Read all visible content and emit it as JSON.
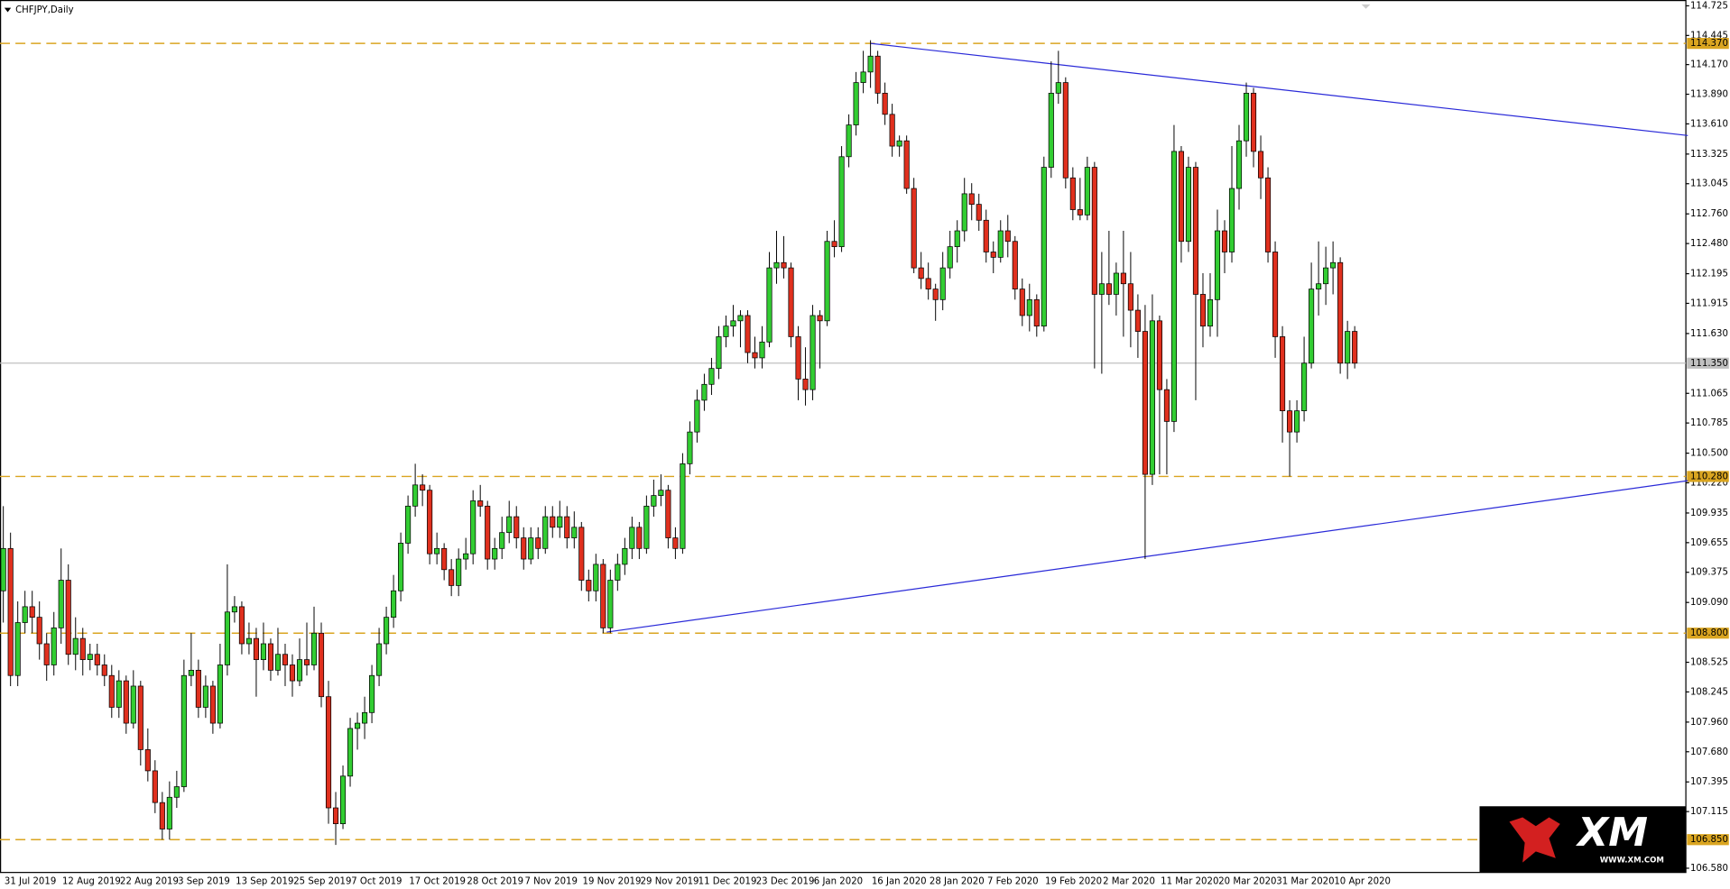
{
  "chart_data": {
    "type": "candlestick",
    "title": "CHFJPY,Daily",
    "categories": [
      "31 Jul 2019",
      null,
      null,
      null,
      null,
      null,
      null,
      null,
      "12 Aug 2019",
      null,
      null,
      null,
      null,
      null,
      null,
      null,
      "22 Aug 2019",
      null,
      null,
      null,
      null,
      null,
      null,
      null,
      "3 Sep 2019",
      null,
      null,
      null,
      null,
      null,
      null,
      null,
      "13 Sep 2019",
      null,
      null,
      null,
      null,
      null,
      null,
      null,
      "25 Sep 2019",
      null,
      null,
      null,
      null,
      null,
      null,
      null,
      "7 Oct 2019",
      null,
      null,
      null,
      null,
      null,
      null,
      null,
      "17 Oct 2019",
      null,
      null,
      null,
      null,
      null,
      null,
      null,
      "28 Oct 2019",
      null,
      null,
      null,
      null,
      null,
      null,
      null,
      "7 Nov 2019",
      null,
      null,
      null,
      null,
      null,
      null,
      null,
      "19 Nov 2019",
      null,
      null,
      null,
      null,
      null,
      null,
      null,
      "29 Nov 2019",
      null,
      null,
      null,
      null,
      null,
      null,
      null,
      "11 Dec 2019",
      null,
      null,
      null,
      null,
      null,
      null,
      null,
      "23 Dec 2019",
      null,
      null,
      null,
      null,
      null,
      null,
      null,
      "6 Jan 2020",
      null,
      null,
      null,
      null,
      null,
      null,
      null,
      "16 Jan 2020",
      null,
      null,
      null,
      null,
      null,
      null,
      null,
      "28 Jan 2020",
      null,
      null,
      null,
      null,
      null,
      null,
      null,
      "7 Feb 2020",
      null,
      null,
      null,
      null,
      null,
      null,
      null,
      "19 Feb 2020",
      null,
      null,
      null,
      null,
      null,
      null,
      null,
      "2 Mar 2020",
      null,
      null,
      null,
      null,
      null,
      null,
      null,
      "11 Mar 2020",
      null,
      null,
      null,
      null,
      null,
      null,
      null,
      "20 Mar 2020",
      null,
      null,
      null,
      null,
      null,
      null,
      null,
      "31 Mar 2020",
      null,
      null,
      null,
      null,
      null,
      null,
      null,
      "10 Apr 2020",
      null,
      null,
      null
    ],
    "ohlc": [
      [
        109.2,
        110.0,
        108.9,
        109.6
      ],
      [
        109.6,
        109.75,
        108.3,
        108.4
      ],
      [
        108.4,
        109.1,
        108.3,
        108.9
      ],
      [
        108.9,
        109.2,
        108.8,
        109.05
      ],
      [
        109.05,
        109.2,
        108.8,
        108.95
      ],
      [
        108.95,
        109.1,
        108.55,
        108.7
      ],
      [
        108.7,
        108.8,
        108.35,
        108.5
      ],
      [
        108.5,
        109.0,
        108.4,
        108.85
      ],
      [
        108.85,
        109.6,
        108.7,
        109.3
      ],
      [
        109.3,
        109.45,
        108.5,
        108.6
      ],
      [
        108.6,
        108.95,
        108.45,
        108.75
      ],
      [
        108.75,
        108.85,
        108.4,
        108.55
      ],
      [
        108.55,
        108.7,
        108.45,
        108.6
      ],
      [
        108.6,
        108.7,
        108.4,
        108.5
      ],
      [
        108.5,
        108.6,
        108.3,
        108.4
      ],
      [
        108.4,
        108.5,
        108.0,
        108.1
      ],
      [
        108.1,
        108.45,
        108.0,
        108.35
      ],
      [
        108.35,
        108.4,
        107.85,
        107.95
      ],
      [
        107.95,
        108.45,
        107.9,
        108.3
      ],
      [
        108.3,
        108.35,
        107.55,
        107.7
      ],
      [
        107.7,
        107.9,
        107.4,
        107.5
      ],
      [
        107.5,
        107.6,
        107.1,
        107.2
      ],
      [
        107.2,
        107.3,
        106.85,
        106.95
      ],
      [
        106.95,
        107.4,
        106.85,
        107.25
      ],
      [
        107.25,
        107.5,
        107.15,
        107.35
      ],
      [
        107.35,
        108.55,
        107.3,
        108.4
      ],
      [
        108.4,
        108.8,
        108.3,
        108.45
      ],
      [
        108.45,
        108.55,
        108.0,
        108.1
      ],
      [
        108.1,
        108.4,
        108.0,
        108.3
      ],
      [
        108.3,
        108.35,
        107.85,
        107.95
      ],
      [
        107.95,
        108.7,
        107.9,
        108.5
      ],
      [
        108.5,
        109.45,
        108.4,
        109.0
      ],
      [
        109.0,
        109.15,
        108.9,
        109.05
      ],
      [
        109.05,
        109.1,
        108.6,
        108.7
      ],
      [
        108.7,
        108.9,
        108.6,
        108.75
      ],
      [
        108.75,
        108.85,
        108.2,
        108.55
      ],
      [
        108.55,
        108.9,
        108.45,
        108.7
      ],
      [
        108.7,
        108.75,
        108.35,
        108.45
      ],
      [
        108.45,
        108.85,
        108.4,
        108.6
      ],
      [
        108.6,
        108.7,
        108.3,
        108.5
      ],
      [
        108.5,
        108.6,
        108.2,
        108.35
      ],
      [
        108.35,
        108.75,
        108.3,
        108.55
      ],
      [
        108.55,
        108.9,
        108.4,
        108.5
      ],
      [
        108.5,
        109.05,
        108.45,
        108.8
      ],
      [
        108.8,
        108.9,
        108.1,
        108.2
      ],
      [
        108.2,
        108.35,
        107.0,
        107.15
      ],
      [
        107.15,
        107.3,
        106.8,
        107.0
      ],
      [
        107.0,
        107.55,
        106.95,
        107.45
      ],
      [
        107.45,
        108.0,
        107.35,
        107.9
      ],
      [
        107.9,
        108.05,
        107.7,
        107.95
      ],
      [
        107.95,
        108.2,
        107.8,
        108.05
      ],
      [
        108.05,
        108.5,
        107.95,
        108.4
      ],
      [
        108.4,
        108.85,
        108.3,
        108.7
      ],
      [
        108.7,
        109.05,
        108.6,
        108.95
      ],
      [
        108.95,
        109.35,
        108.85,
        109.2
      ],
      [
        109.2,
        109.75,
        109.1,
        109.65
      ],
      [
        109.65,
        110.1,
        109.55,
        110.0
      ],
      [
        110.0,
        110.4,
        109.9,
        110.2
      ],
      [
        110.2,
        110.3,
        110.0,
        110.15
      ],
      [
        110.15,
        110.2,
        109.45,
        109.55
      ],
      [
        109.55,
        109.75,
        109.45,
        109.6
      ],
      [
        109.6,
        109.65,
        109.3,
        109.4
      ],
      [
        109.4,
        109.5,
        109.15,
        109.25
      ],
      [
        109.25,
        109.6,
        109.15,
        109.5
      ],
      [
        109.5,
        109.7,
        109.4,
        109.55
      ],
      [
        109.55,
        110.15,
        109.45,
        110.05
      ],
      [
        110.05,
        110.2,
        109.9,
        110.0
      ],
      [
        110.0,
        110.05,
        109.4,
        109.5
      ],
      [
        109.5,
        109.7,
        109.4,
        109.6
      ],
      [
        109.6,
        109.9,
        109.5,
        109.75
      ],
      [
        109.75,
        110.05,
        109.65,
        109.9
      ],
      [
        109.9,
        110.0,
        109.6,
        109.7
      ],
      [
        109.7,
        109.8,
        109.4,
        109.5
      ],
      [
        109.5,
        109.8,
        109.45,
        109.7
      ],
      [
        109.7,
        109.8,
        109.5,
        109.6
      ],
      [
        109.6,
        110.0,
        109.55,
        109.9
      ],
      [
        109.9,
        110.0,
        109.7,
        109.8
      ],
      [
        109.8,
        110.05,
        109.7,
        109.9
      ],
      [
        109.9,
        110.0,
        109.6,
        109.7
      ],
      [
        109.7,
        109.95,
        109.6,
        109.8
      ],
      [
        109.8,
        109.85,
        109.2,
        109.3
      ],
      [
        109.3,
        109.4,
        109.1,
        109.2
      ],
      [
        109.2,
        109.55,
        109.1,
        109.45
      ],
      [
        109.45,
        109.5,
        108.8,
        108.85
      ],
      [
        108.85,
        109.4,
        108.8,
        109.3
      ],
      [
        109.3,
        109.55,
        109.2,
        109.45
      ],
      [
        109.45,
        109.7,
        109.35,
        109.6
      ],
      [
        109.6,
        109.9,
        109.5,
        109.8
      ],
      [
        109.8,
        109.85,
        109.5,
        109.6
      ],
      [
        109.6,
        110.1,
        109.55,
        110.0
      ],
      [
        110.0,
        110.25,
        109.9,
        110.1
      ],
      [
        110.1,
        110.3,
        110.0,
        110.15
      ],
      [
        110.15,
        110.2,
        109.6,
        109.7
      ],
      [
        109.7,
        109.8,
        109.5,
        109.6
      ],
      [
        109.6,
        110.5,
        109.55,
        110.4
      ],
      [
        110.4,
        110.8,
        110.3,
        110.7
      ],
      [
        110.7,
        111.1,
        110.6,
        111.0
      ],
      [
        111.0,
        111.25,
        110.9,
        111.15
      ],
      [
        111.15,
        111.4,
        111.05,
        111.3
      ],
      [
        111.3,
        111.7,
        111.2,
        111.6
      ],
      [
        111.6,
        111.8,
        111.5,
        111.7
      ],
      [
        111.7,
        111.9,
        111.6,
        111.75
      ],
      [
        111.75,
        111.85,
        111.5,
        111.8
      ],
      [
        111.8,
        111.85,
        111.35,
        111.45
      ],
      [
        111.45,
        111.6,
        111.3,
        111.4
      ],
      [
        111.4,
        111.7,
        111.3,
        111.55
      ],
      [
        111.55,
        112.4,
        111.5,
        112.25
      ],
      [
        112.25,
        112.6,
        112.1,
        112.3
      ],
      [
        112.3,
        112.55,
        112.15,
        112.25
      ],
      [
        112.25,
        112.3,
        111.5,
        111.6
      ],
      [
        111.6,
        111.7,
        111.0,
        111.2
      ],
      [
        111.2,
        111.5,
        110.95,
        111.1
      ],
      [
        111.1,
        111.9,
        111.0,
        111.8
      ],
      [
        111.8,
        111.85,
        111.3,
        111.75
      ],
      [
        111.75,
        112.6,
        111.7,
        112.5
      ],
      [
        112.5,
        112.7,
        112.35,
        112.45
      ],
      [
        112.45,
        113.4,
        112.4,
        113.3
      ],
      [
        113.3,
        113.7,
        113.2,
        113.6
      ],
      [
        113.6,
        114.1,
        113.5,
        114.0
      ],
      [
        114.0,
        114.3,
        113.9,
        114.1
      ],
      [
        114.1,
        114.4,
        113.95,
        114.25
      ],
      [
        114.25,
        114.3,
        113.8,
        113.9
      ],
      [
        113.9,
        114.0,
        113.6,
        113.7
      ],
      [
        113.7,
        113.8,
        113.3,
        113.4
      ],
      [
        113.4,
        113.5,
        113.3,
        113.45
      ],
      [
        113.45,
        113.5,
        112.95,
        113.0
      ],
      [
        113.0,
        113.1,
        112.2,
        112.25
      ],
      [
        112.25,
        112.4,
        112.05,
        112.15
      ],
      [
        112.15,
        112.3,
        111.95,
        112.05
      ],
      [
        112.05,
        112.1,
        111.75,
        111.95
      ],
      [
        111.95,
        112.4,
        111.85,
        112.25
      ],
      [
        112.25,
        112.6,
        112.15,
        112.45
      ],
      [
        112.45,
        112.7,
        112.3,
        112.6
      ],
      [
        112.6,
        113.1,
        112.5,
        112.95
      ],
      [
        112.95,
        113.05,
        112.7,
        112.85
      ],
      [
        112.85,
        112.95,
        112.6,
        112.7
      ],
      [
        112.7,
        112.8,
        112.3,
        112.4
      ],
      [
        112.4,
        112.5,
        112.2,
        112.35
      ],
      [
        112.35,
        112.7,
        112.3,
        112.6
      ],
      [
        112.6,
        112.75,
        112.35,
        112.5
      ],
      [
        112.5,
        112.55,
        111.95,
        112.05
      ],
      [
        112.05,
        112.15,
        111.7,
        111.8
      ],
      [
        111.8,
        112.1,
        111.65,
        111.95
      ],
      [
        111.95,
        112.0,
        111.6,
        111.7
      ],
      [
        111.7,
        113.3,
        111.65,
        113.2
      ],
      [
        113.2,
        114.2,
        113.1,
        113.9
      ],
      [
        113.9,
        114.3,
        113.8,
        114.0
      ],
      [
        114.0,
        114.05,
        113.0,
        113.1
      ],
      [
        113.1,
        113.2,
        112.7,
        112.8
      ],
      [
        112.8,
        113.1,
        112.7,
        112.75
      ],
      [
        112.75,
        113.3,
        112.7,
        113.2
      ],
      [
        113.2,
        113.25,
        111.3,
        112.0
      ],
      [
        112.0,
        112.4,
        111.25,
        112.1
      ],
      [
        112.1,
        112.6,
        111.9,
        112.0
      ],
      [
        112.0,
        112.3,
        111.8,
        112.2
      ],
      [
        112.2,
        112.6,
        111.6,
        112.1
      ],
      [
        112.1,
        112.4,
        111.5,
        111.85
      ],
      [
        111.85,
        112.0,
        111.4,
        111.65
      ],
      [
        111.65,
        111.9,
        109.5,
        110.3
      ],
      [
        110.3,
        112.0,
        110.2,
        111.75
      ],
      [
        111.75,
        111.8,
        110.3,
        111.1
      ],
      [
        111.1,
        111.2,
        110.3,
        110.8
      ],
      [
        110.8,
        113.6,
        110.7,
        113.35
      ],
      [
        113.35,
        113.4,
        112.3,
        112.5
      ],
      [
        112.5,
        113.3,
        112.4,
        113.2
      ],
      [
        113.2,
        113.25,
        111.0,
        112.0
      ],
      [
        112.0,
        112.2,
        111.5,
        111.7
      ],
      [
        111.7,
        112.2,
        111.6,
        111.95
      ],
      [
        111.95,
        112.8,
        111.6,
        112.6
      ],
      [
        112.6,
        112.7,
        112.2,
        112.4
      ],
      [
        112.4,
        113.4,
        112.3,
        113.0
      ],
      [
        113.0,
        113.6,
        112.8,
        113.45
      ],
      [
        113.45,
        114.0,
        113.3,
        113.9
      ],
      [
        113.9,
        113.95,
        113.2,
        113.35
      ],
      [
        113.35,
        113.5,
        112.9,
        113.1
      ],
      [
        113.1,
        113.2,
        112.3,
        112.4
      ],
      [
        112.4,
        112.5,
        111.4,
        111.6
      ],
      [
        111.6,
        111.7,
        110.6,
        110.9
      ],
      [
        110.9,
        111.0,
        110.28,
        110.7
      ],
      [
        110.7,
        111.0,
        110.6,
        110.9
      ],
      [
        110.9,
        111.6,
        110.8,
        111.35
      ],
      [
        111.35,
        112.3,
        111.3,
        112.05
      ],
      [
        112.05,
        112.5,
        111.8,
        112.1
      ],
      [
        112.1,
        112.45,
        111.9,
        112.25
      ],
      [
        112.25,
        112.5,
        112.0,
        112.3
      ],
      [
        112.3,
        112.35,
        111.25,
        111.35
      ],
      [
        111.35,
        111.75,
        111.2,
        111.65
      ],
      [
        111.65,
        111.7,
        111.3,
        111.35
      ]
    ],
    "up_color": "#32cd32",
    "down_color": "#e0301e",
    "ylim": [
      106.54,
      114.78
    ],
    "yticks": [
      114.725,
      114.445,
      {
        "value": 114.17,
        "label": "114.170"
      },
      {
        "value": 113.89,
        "label": "113.890"
      },
      {
        "value": 113.61,
        "label": "113.610"
      },
      113.325,
      113.045,
      {
        "value": 112.76,
        "label": "112.760"
      },
      {
        "value": 112.48,
        "label": "112.480"
      },
      112.195,
      111.915,
      {
        "value": 111.63,
        "label": "111.630"
      },
      111.065,
      110.785,
      {
        "value": 110.5,
        "label": "110.500"
      },
      {
        "value": 110.22,
        "label": "110.220"
      },
      109.935,
      109.655,
      109.375,
      {
        "value": 109.09,
        "label": "109.090"
      },
      108.525,
      108.245,
      {
        "value": 107.96,
        "label": "107.960"
      },
      {
        "value": 107.68,
        "label": "107.680"
      },
      107.395,
      107.115,
      {
        "value": 106.58,
        "label": "106.580"
      }
    ],
    "levels": [
      {
        "value": 114.37,
        "label": "114.370"
      },
      {
        "value": 110.28,
        "label": "110.280"
      },
      {
        "value": 108.8,
        "label": "108.800"
      },
      {
        "value": 106.85,
        "label": "106.850"
      }
    ],
    "level_color": "#daa520",
    "price_line": {
      "value": 111.35,
      "label": "111.350"
    },
    "trendlines": [
      {
        "x": [
          120,
          233.1
        ],
        "y": [
          114.37,
          113.5
        ]
      },
      {
        "x": [
          83.5,
          233.1
        ],
        "y": [
          108.81,
          110.24
        ]
      }
    ],
    "trendline_color": "#2a2ad8",
    "logo": {
      "text": "XM",
      "url": "WWW.XM.COM"
    }
  }
}
